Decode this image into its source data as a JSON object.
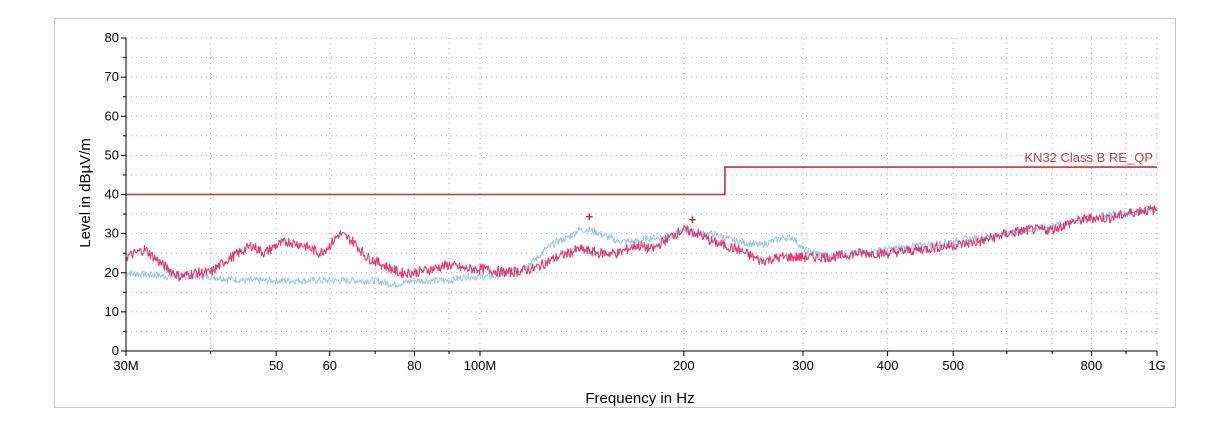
{
  "chart_data": {
    "type": "line",
    "xlabel": "Frequency in Hz",
    "ylabel": "Level in dBµV/m",
    "x_scale": "log",
    "xlim": [
      30000000,
      1000000000
    ],
    "ylim": [
      0,
      80
    ],
    "grid": true,
    "y_ticks": [
      0,
      10,
      20,
      30,
      40,
      50,
      60,
      70,
      80
    ],
    "x_ticks": [
      {
        "value": 30000000,
        "label": "30M"
      },
      {
        "value": 50000000,
        "label": "50"
      },
      {
        "value": 60000000,
        "label": "60"
      },
      {
        "value": 80000000,
        "label": "80"
      },
      {
        "value": 100000000,
        "label": "100M"
      },
      {
        "value": 200000000,
        "label": "200"
      },
      {
        "value": 300000000,
        "label": "300"
      },
      {
        "value": 400000000,
        "label": "400"
      },
      {
        "value": 500000000,
        "label": "500"
      },
      {
        "value": 800000000,
        "label": "800"
      },
      {
        "value": 1000000000,
        "label": "1G"
      }
    ],
    "limit_line": {
      "name": "KN32 Class B RE_QP",
      "color": "#c8303c",
      "points": [
        [
          30000000,
          40
        ],
        [
          230000000,
          40
        ],
        [
          230000000,
          47
        ],
        [
          1000000000,
          47
        ]
      ]
    },
    "series": [
      {
        "color": "#e0306e",
        "values": [
          [
            30000000,
            24
          ],
          [
            32000000,
            26
          ],
          [
            34000000,
            22
          ],
          [
            36000000,
            19
          ],
          [
            38000000,
            20
          ],
          [
            40000000,
            20
          ],
          [
            42000000,
            23
          ],
          [
            44000000,
            25
          ],
          [
            46000000,
            27
          ],
          [
            48000000,
            25
          ],
          [
            50000000,
            27
          ],
          [
            52000000,
            28
          ],
          [
            55000000,
            27
          ],
          [
            58000000,
            25
          ],
          [
            60000000,
            27
          ],
          [
            62000000,
            30
          ],
          [
            65000000,
            28
          ],
          [
            68000000,
            24
          ],
          [
            72000000,
            22
          ],
          [
            76000000,
            20
          ],
          [
            80000000,
            20
          ],
          [
            85000000,
            21
          ],
          [
            90000000,
            22
          ],
          [
            95000000,
            21
          ],
          [
            100000000,
            21
          ],
          [
            110000000,
            20
          ],
          [
            120000000,
            21
          ],
          [
            130000000,
            24
          ],
          [
            140000000,
            26
          ],
          [
            150000000,
            25
          ],
          [
            160000000,
            25
          ],
          [
            170000000,
            27
          ],
          [
            180000000,
            26
          ],
          [
            190000000,
            29
          ],
          [
            200000000,
            31
          ],
          [
            210000000,
            30
          ],
          [
            220000000,
            28
          ],
          [
            240000000,
            26
          ],
          [
            260000000,
            23
          ],
          [
            280000000,
            24
          ],
          [
            300000000,
            24
          ],
          [
            330000000,
            24
          ],
          [
            360000000,
            25
          ],
          [
            400000000,
            25
          ],
          [
            450000000,
            26
          ],
          [
            500000000,
            27
          ],
          [
            550000000,
            28
          ],
          [
            600000000,
            30
          ],
          [
            650000000,
            31
          ],
          [
            700000000,
            31
          ],
          [
            750000000,
            33
          ],
          [
            800000000,
            34
          ],
          [
            850000000,
            34
          ],
          [
            900000000,
            35
          ],
          [
            950000000,
            36
          ],
          [
            1000000000,
            36
          ]
        ]
      },
      {
        "color": "#8ec3f0",
        "values": [
          [
            30000000,
            20
          ],
          [
            35000000,
            19
          ],
          [
            40000000,
            19
          ],
          [
            45000000,
            18
          ],
          [
            50000000,
            18
          ],
          [
            55000000,
            18
          ],
          [
            60000000,
            18
          ],
          [
            65000000,
            18
          ],
          [
            70000000,
            18
          ],
          [
            75000000,
            17
          ],
          [
            80000000,
            18
          ],
          [
            85000000,
            18
          ],
          [
            90000000,
            18
          ],
          [
            95000000,
            19
          ],
          [
            100000000,
            19
          ],
          [
            105000000,
            19
          ],
          [
            110000000,
            20
          ],
          [
            115000000,
            21
          ],
          [
            120000000,
            23
          ],
          [
            125000000,
            26
          ],
          [
            130000000,
            28
          ],
          [
            135000000,
            29
          ],
          [
            140000000,
            31
          ],
          [
            145000000,
            31
          ],
          [
            150000000,
            30
          ],
          [
            160000000,
            28
          ],
          [
            170000000,
            28
          ],
          [
            180000000,
            29
          ],
          [
            190000000,
            29
          ],
          [
            200000000,
            31
          ],
          [
            210000000,
            30
          ],
          [
            220000000,
            30
          ],
          [
            240000000,
            28
          ],
          [
            260000000,
            27
          ],
          [
            280000000,
            29
          ],
          [
            290000000,
            29
          ],
          [
            300000000,
            26
          ],
          [
            330000000,
            24
          ],
          [
            360000000,
            25
          ],
          [
            400000000,
            26
          ],
          [
            450000000,
            27
          ],
          [
            500000000,
            28
          ],
          [
            550000000,
            29
          ],
          [
            600000000,
            30
          ],
          [
            650000000,
            31
          ],
          [
            700000000,
            32
          ],
          [
            750000000,
            33
          ],
          [
            800000000,
            34
          ],
          [
            850000000,
            35
          ],
          [
            900000000,
            35
          ],
          [
            950000000,
            36
          ],
          [
            1000000000,
            36
          ]
        ]
      }
    ],
    "markers": [
      {
        "x": 145000000,
        "y": 34.5,
        "symbol": "+",
        "color": "#d02020"
      },
      {
        "x": 206000000,
        "y": 33.8,
        "symbol": "+",
        "color": "#d02020"
      }
    ]
  }
}
